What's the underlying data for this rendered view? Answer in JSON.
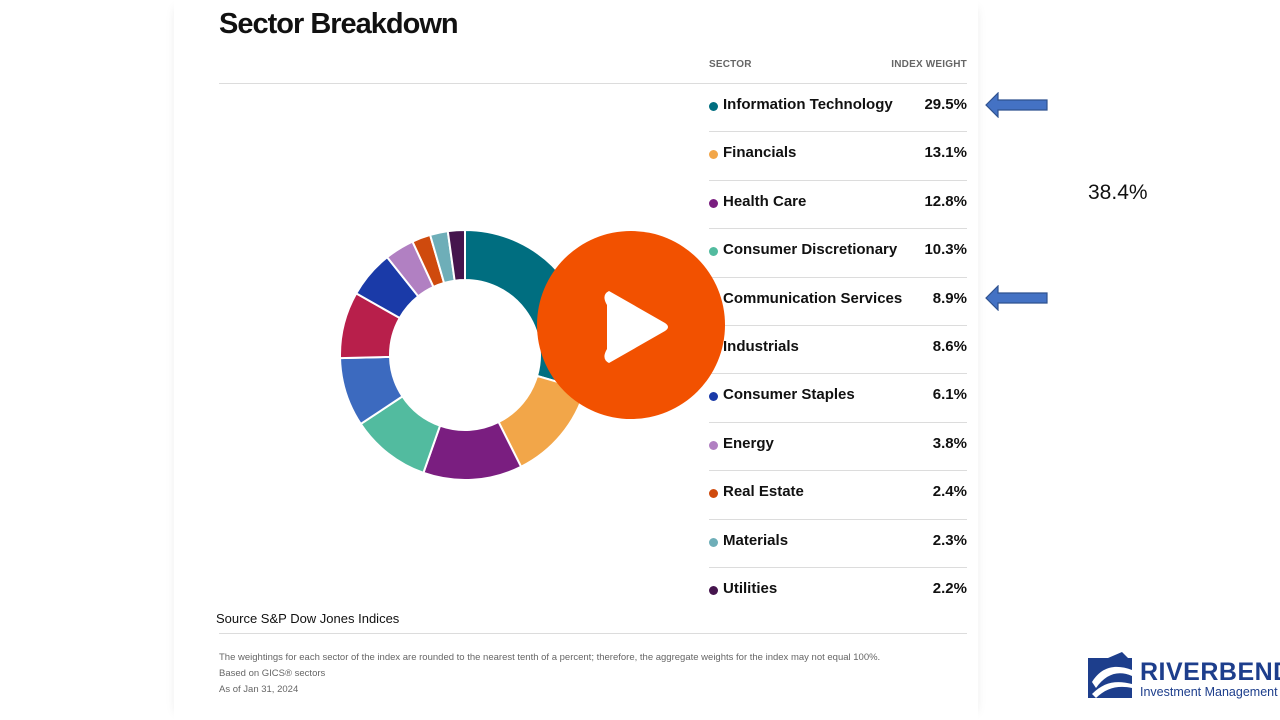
{
  "title": "Sector Breakdown",
  "table": {
    "col_sector": "SECTOR",
    "col_weight": "INDEX WEIGHT"
  },
  "chart_data": {
    "type": "pie",
    "categories": [
      "Information Technology",
      "Financials",
      "Health Care",
      "Consumer Discretionary",
      "Communication Services",
      "Industrials",
      "Consumer Staples",
      "Energy",
      "Real Estate",
      "Materials",
      "Utilities"
    ],
    "values": [
      29.5,
      13.1,
      12.8,
      10.3,
      8.9,
      8.6,
      6.1,
      3.8,
      2.4,
      2.3,
      2.2
    ],
    "labels": [
      "29.5%",
      "13.1%",
      "12.8%",
      "10.3%",
      "8.9%",
      "8.6%",
      "6.1%",
      "3.8%",
      "2.4%",
      "2.3%",
      "2.2%"
    ],
    "colors": [
      "#006e80",
      "#f2a649",
      "#7a1e80",
      "#52bb9f",
      "#3c6abf",
      "#b81f4b",
      "#1a3aa8",
      "#b180c2",
      "#cf4a0d",
      "#6eaeb8",
      "#45144d"
    ],
    "legend": "right"
  },
  "annotation": "38.4%",
  "source": "Source S&P Dow Jones Indices",
  "footnotes": [
    "The weightings for each sector of the index are rounded to the nearest tenth of a percent; therefore, the aggregate weights for the index may not equal 100%.",
    "Based on GICS® sectors",
    "As of Jan 31, 2024"
  ],
  "logo": {
    "name": "RIVERBEND",
    "subtitle": "Investment Management"
  },
  "colors": {
    "play_button": "#f25100",
    "arrow": "#4472c4",
    "brand": "#1d3e8c"
  }
}
